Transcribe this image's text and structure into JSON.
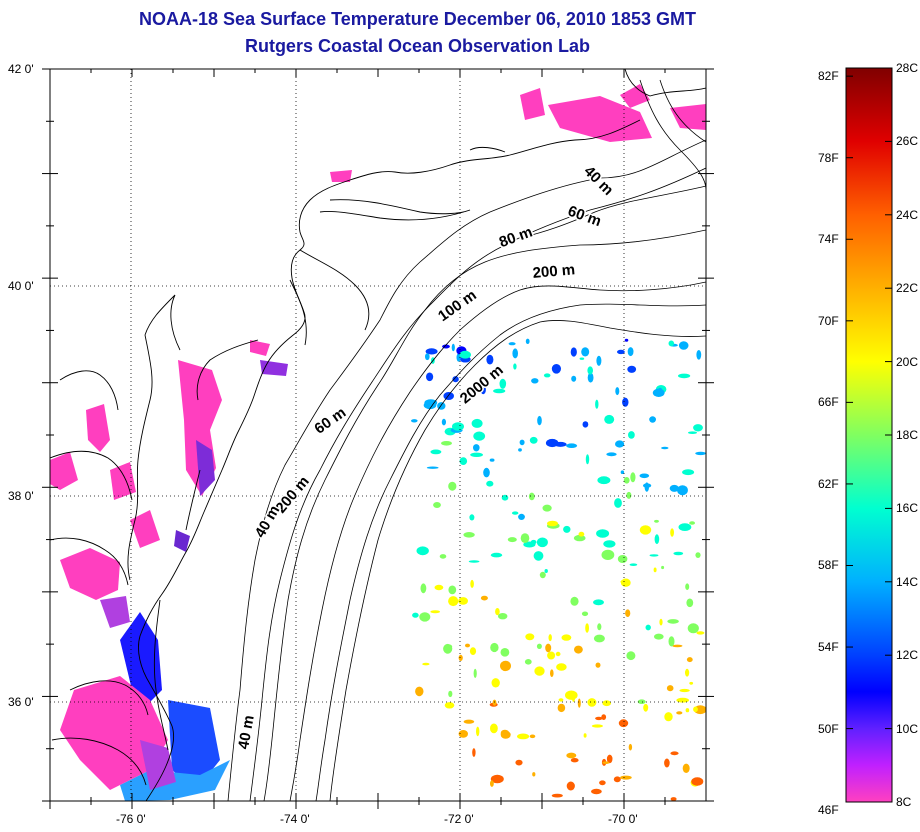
{
  "title": {
    "line1": "NOAA-18 Sea Surface Temperature December 06, 2010 1853 GMT",
    "line2": "Rutgers Coastal Ocean Observation Lab"
  },
  "map": {
    "lon_range": [
      -77.0,
      -69.0
    ],
    "lat_range": [
      35.0,
      42.0
    ],
    "lon_ticks": [
      {
        "value": -76,
        "label": "-76 0'"
      },
      {
        "value": -74,
        "label": "-74 0'"
      },
      {
        "value": -72,
        "label": "-72 0'"
      },
      {
        "value": -70,
        "label": "-70 0'"
      }
    ],
    "lat_ticks": [
      {
        "value": 42,
        "label": "42 0'"
      },
      {
        "value": 40,
        "label": "40 0'"
      },
      {
        "value": 38,
        "label": "38 0'"
      },
      {
        "value": 36,
        "label": "36 0'"
      }
    ],
    "grid": "dotted",
    "isobath_labels": [
      {
        "text": "40 m",
        "lon": -70.35,
        "lat": 40.9,
        "angle": 45
      },
      {
        "text": "60 m",
        "lon": -70.5,
        "lat": 40.55,
        "angle": 20
      },
      {
        "text": "80 m",
        "lon": -71.3,
        "lat": 40.35,
        "angle": -20
      },
      {
        "text": "200 m",
        "lon": -70.85,
        "lat": 40.02,
        "angle": -5
      },
      {
        "text": "100 m",
        "lon": -72.0,
        "lat": 39.7,
        "angle": -35
      },
      {
        "text": "2000 m",
        "lon": -71.7,
        "lat": 38.95,
        "angle": -40
      },
      {
        "text": "60 m",
        "lon": -73.55,
        "lat": 38.6,
        "angle": -35
      },
      {
        "text": "200 m",
        "lon": -74.0,
        "lat": 37.9,
        "angle": -50
      },
      {
        "text": "40 m",
        "lon": -74.3,
        "lat": 37.65,
        "angle": -60
      },
      {
        "text": "40 m",
        "lon": -74.55,
        "lat": 35.65,
        "angle": -80
      }
    ]
  },
  "colorbar": {
    "min_c": 8,
    "max_c": 28,
    "fahrenheit_labels": [
      "82F",
      "78F",
      "74F",
      "70F",
      "66F",
      "62F",
      "58F",
      "54F",
      "50F",
      "46F"
    ],
    "celsius_labels": [
      "28C",
      "26C",
      "24C",
      "22C",
      "20C",
      "18C",
      "16C",
      "14C",
      "12C",
      "10C",
      "8C"
    ],
    "stops": [
      {
        "c": 28,
        "color": "#800000"
      },
      {
        "c": 26,
        "color": "#e00000"
      },
      {
        "c": 24,
        "color": "#ff6000"
      },
      {
        "c": 22,
        "color": "#ffb000"
      },
      {
        "c": 20,
        "color": "#ffff00"
      },
      {
        "c": 18,
        "color": "#80ff60"
      },
      {
        "c": 16,
        "color": "#00ffd0"
      },
      {
        "c": 14,
        "color": "#00b0ff"
      },
      {
        "c": 12,
        "color": "#0040ff"
      },
      {
        "c": 11,
        "color": "#0000ff"
      },
      {
        "c": 10,
        "color": "#6020ff"
      },
      {
        "c": 9,
        "color": "#c020ff"
      },
      {
        "c": 8,
        "color": "#ff40c0"
      }
    ]
  },
  "colors": {
    "title": "#1a1aa0",
    "coast": "#000000",
    "cold_nearshore": "#ff3fbf",
    "purple": "#7d2cd8",
    "blue": "#1a1aff"
  }
}
